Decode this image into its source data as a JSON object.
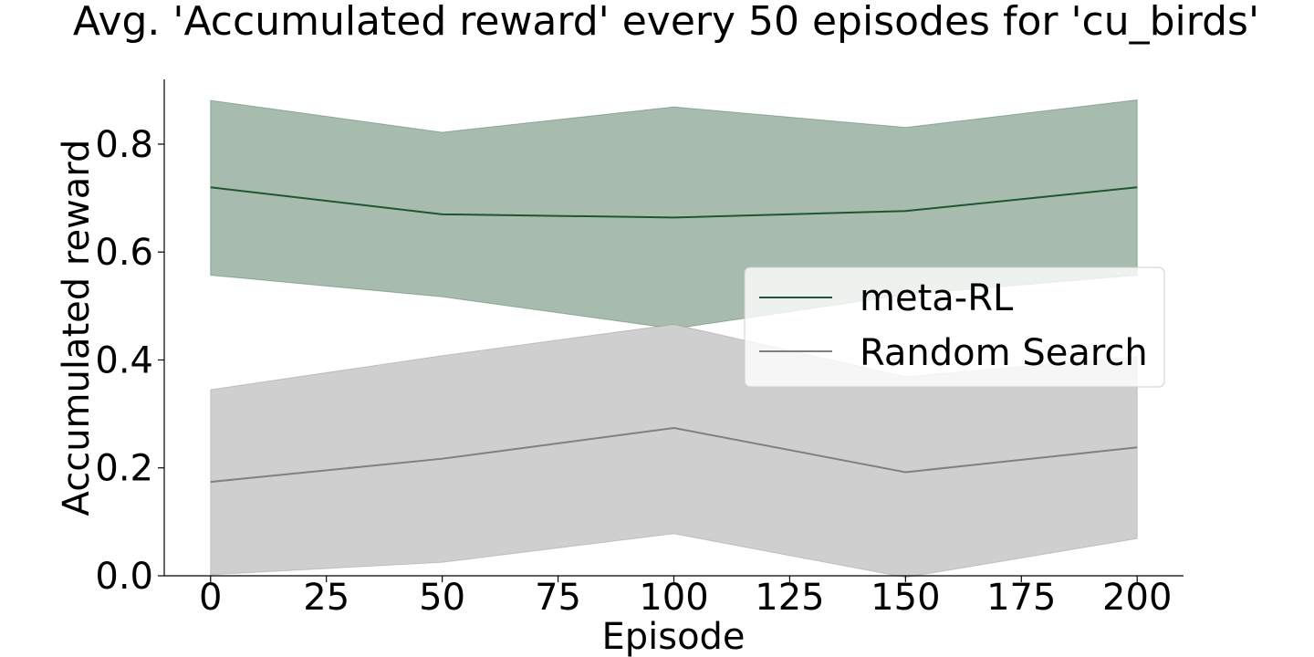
{
  "chart_data": {
    "type": "line",
    "title": "Avg. 'Accumulated reward' every 50 episodes for 'cu_birds'",
    "xlabel": "Episode",
    "ylabel": "Accumulated reward",
    "xlim": [
      -10,
      210
    ],
    "ylim": [
      0,
      0.92
    ],
    "xticks": [
      0,
      25,
      50,
      75,
      100,
      125,
      150,
      175,
      200
    ],
    "xtick_labels": [
      "0",
      "25",
      "50",
      "75",
      "100",
      "125",
      "150",
      "175",
      "200"
    ],
    "yticks": [
      0.0,
      0.2,
      0.4,
      0.6,
      0.8
    ],
    "ytick_labels": [
      "0.0",
      "0.2",
      "0.4",
      "0.6",
      "0.8"
    ],
    "x": [
      0,
      50,
      100,
      150,
      200
    ],
    "grid": false,
    "legend_position": "center-right",
    "series": [
      {
        "name": "meta-RL",
        "color": "#1e5631",
        "band_color": "#a7bcae",
        "values": [
          0.72,
          0.67,
          0.664,
          0.676,
          0.72
        ],
        "upper": [
          0.881,
          0.822,
          0.869,
          0.831,
          0.882
        ],
        "lower": [
          0.557,
          0.517,
          0.458,
          0.521,
          0.557
        ]
      },
      {
        "name": "Random Search",
        "color": "#808080",
        "band_color": "#cfcfcf",
        "values": [
          0.174,
          0.217,
          0.274,
          0.192,
          0.238
        ],
        "upper": [
          0.345,
          0.408,
          0.466,
          0.369,
          0.406
        ],
        "lower": [
          0.002,
          0.025,
          0.078,
          -0.003,
          0.069
        ]
      }
    ]
  }
}
